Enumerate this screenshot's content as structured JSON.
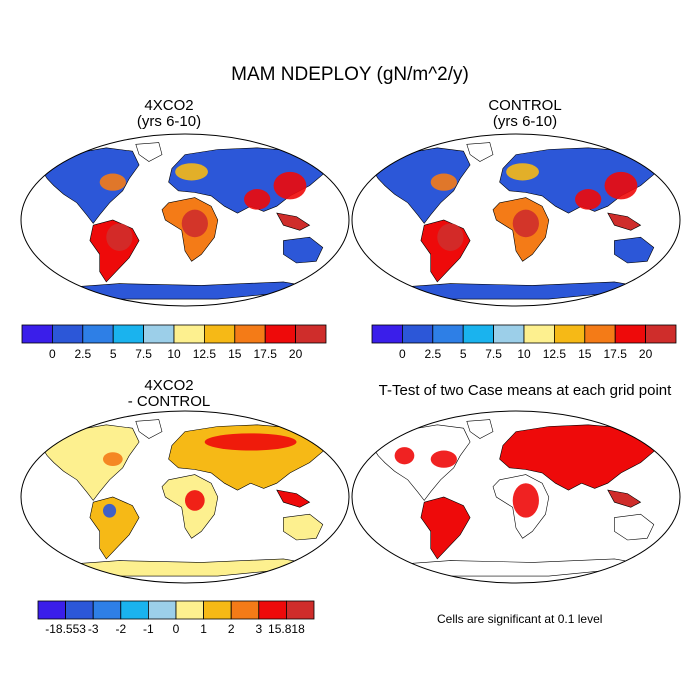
{
  "title": "MAM NDEPLOY (gN/m^2/y)",
  "panels": [
    {
      "id": "p1",
      "title_line1": "4XCO2",
      "title_line2": "(yrs 6-10)"
    },
    {
      "id": "p2",
      "title_line1": "CONTROL",
      "title_line2": " (yrs 6-10)"
    },
    {
      "id": "p3",
      "title_line1": "4XCO2",
      "title_line2": "- CONTROL"
    },
    {
      "id": "p4",
      "title_line1": "T-Test of two Case means at each grid point",
      "title_line2": ""
    }
  ],
  "colorbars": {
    "top": {
      "colors": [
        "#3a1eea",
        "#2c57d8",
        "#2e7fe6",
        "#1ab3ee",
        "#9ccfe9",
        "#fdf08f",
        "#f6b916",
        "#f47b17",
        "#ee0a0a",
        "#cf2d2b"
      ],
      "labels": [
        "0",
        "2.5",
        "5",
        "7.5",
        "10",
        "12.5",
        "15",
        "17.5",
        "20"
      ]
    },
    "diff": {
      "colors": [
        "#3a1eea",
        "#2c57d8",
        "#2e7fe6",
        "#1ab3ee",
        "#9ccfe9",
        "#fdf08f",
        "#f6b916",
        "#f47b17",
        "#ee0a0a",
        "#cf2d2b"
      ],
      "labels": [
        "-18.553",
        "-3",
        "-2",
        "-1",
        "0",
        "1",
        "2",
        "3",
        "15.818"
      ]
    }
  },
  "significance_note": "Cells are significant at 0.1 level",
  "colors": {
    "land_low": "#2c57d8",
    "land_high": "#cf2d2b",
    "diff_neutral": "#fdf08f",
    "significant": "#ee0a0a"
  }
}
